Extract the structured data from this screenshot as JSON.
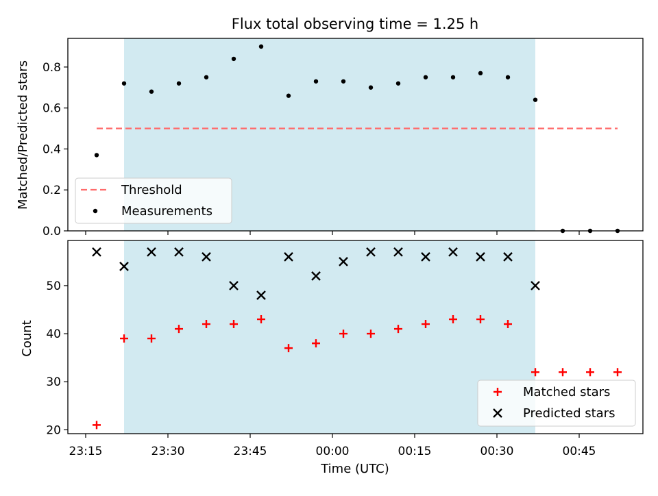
{
  "title": "Flux total observing time = 1.25 h",
  "colors": {
    "shade": "#add8e6",
    "threshold": "#ff6b6b",
    "matched": "#ff0000",
    "predicted": "#000000",
    "measure": "#000000"
  },
  "chart_data": [
    {
      "type": "scatter",
      "title": "Flux total observing time = 1.25 h",
      "xlabel": "",
      "ylabel": "Matched/Predicted stars",
      "ylim": [
        0.0,
        0.94
      ],
      "yticks": [
        0.0,
        0.2,
        0.4,
        0.6,
        0.8
      ],
      "ytick_labels": [
        "0.0",
        "0.2",
        "0.4",
        "0.6",
        "0.8"
      ],
      "shaded_span": [
        "23:22",
        "00:37"
      ],
      "legend": {
        "placement": "lower-left",
        "entries": [
          "Threshold",
          "Measurements"
        ]
      },
      "series": [
        {
          "name": "Threshold",
          "style": "dashed-line",
          "x": [
            "23:17",
            "00:52"
          ],
          "y": [
            0.5,
            0.5
          ]
        },
        {
          "name": "Measurements",
          "style": "dot",
          "x": [
            "23:17",
            "23:22",
            "23:27",
            "23:32",
            "23:37",
            "23:42",
            "23:47",
            "23:52",
            "23:57",
            "00:02",
            "00:07",
            "00:12",
            "00:17",
            "00:22",
            "00:27",
            "00:32",
            "00:37",
            "00:42",
            "00:47",
            "00:52"
          ],
          "y": [
            0.37,
            0.72,
            0.68,
            0.72,
            0.75,
            0.84,
            0.9,
            0.66,
            0.73,
            0.73,
            0.7,
            0.72,
            0.75,
            0.75,
            0.77,
            0.75,
            0.64,
            0.0,
            0.0,
            0.0
          ]
        }
      ]
    },
    {
      "type": "scatter",
      "title": "",
      "xlabel": "Time (UTC)",
      "ylabel": "Count",
      "ylim": [
        19.2,
        59.4
      ],
      "yticks": [
        20,
        30,
        40,
        50
      ],
      "ytick_labels": [
        "20",
        "30",
        "40",
        "50"
      ],
      "xticks": [
        "23:15",
        "23:30",
        "23:45",
        "00:00",
        "00:15",
        "00:30",
        "00:45"
      ],
      "shaded_span": [
        "23:22",
        "00:37"
      ],
      "legend": {
        "placement": "lower-right",
        "entries": [
          "Matched stars",
          "Predicted stars"
        ]
      },
      "series": [
        {
          "name": "Matched stars",
          "marker": "+",
          "x": [
            "23:17",
            "23:22",
            "23:27",
            "23:32",
            "23:37",
            "23:42",
            "23:47",
            "23:52",
            "23:57",
            "00:02",
            "00:07",
            "00:12",
            "00:17",
            "00:22",
            "00:27",
            "00:32",
            "00:37",
            "00:42",
            "00:47",
            "00:52"
          ],
          "y": [
            21,
            39,
            39,
            41,
            42,
            42,
            43,
            37,
            38,
            40,
            40,
            41,
            42,
            43,
            43,
            42,
            32,
            32,
            32,
            32
          ]
        },
        {
          "name": "Predicted stars",
          "marker": "x",
          "x": [
            "23:17",
            "23:22",
            "23:27",
            "23:32",
            "23:37",
            "23:42",
            "23:47",
            "23:52",
            "23:57",
            "00:02",
            "00:07",
            "00:12",
            "00:17",
            "00:22",
            "00:27",
            "00:32",
            "00:37"
          ],
          "y": [
            57,
            54,
            57,
            57,
            56,
            50,
            48,
            56,
            52,
            55,
            57,
            57,
            56,
            57,
            56,
            56,
            50
          ]
        }
      ]
    }
  ]
}
